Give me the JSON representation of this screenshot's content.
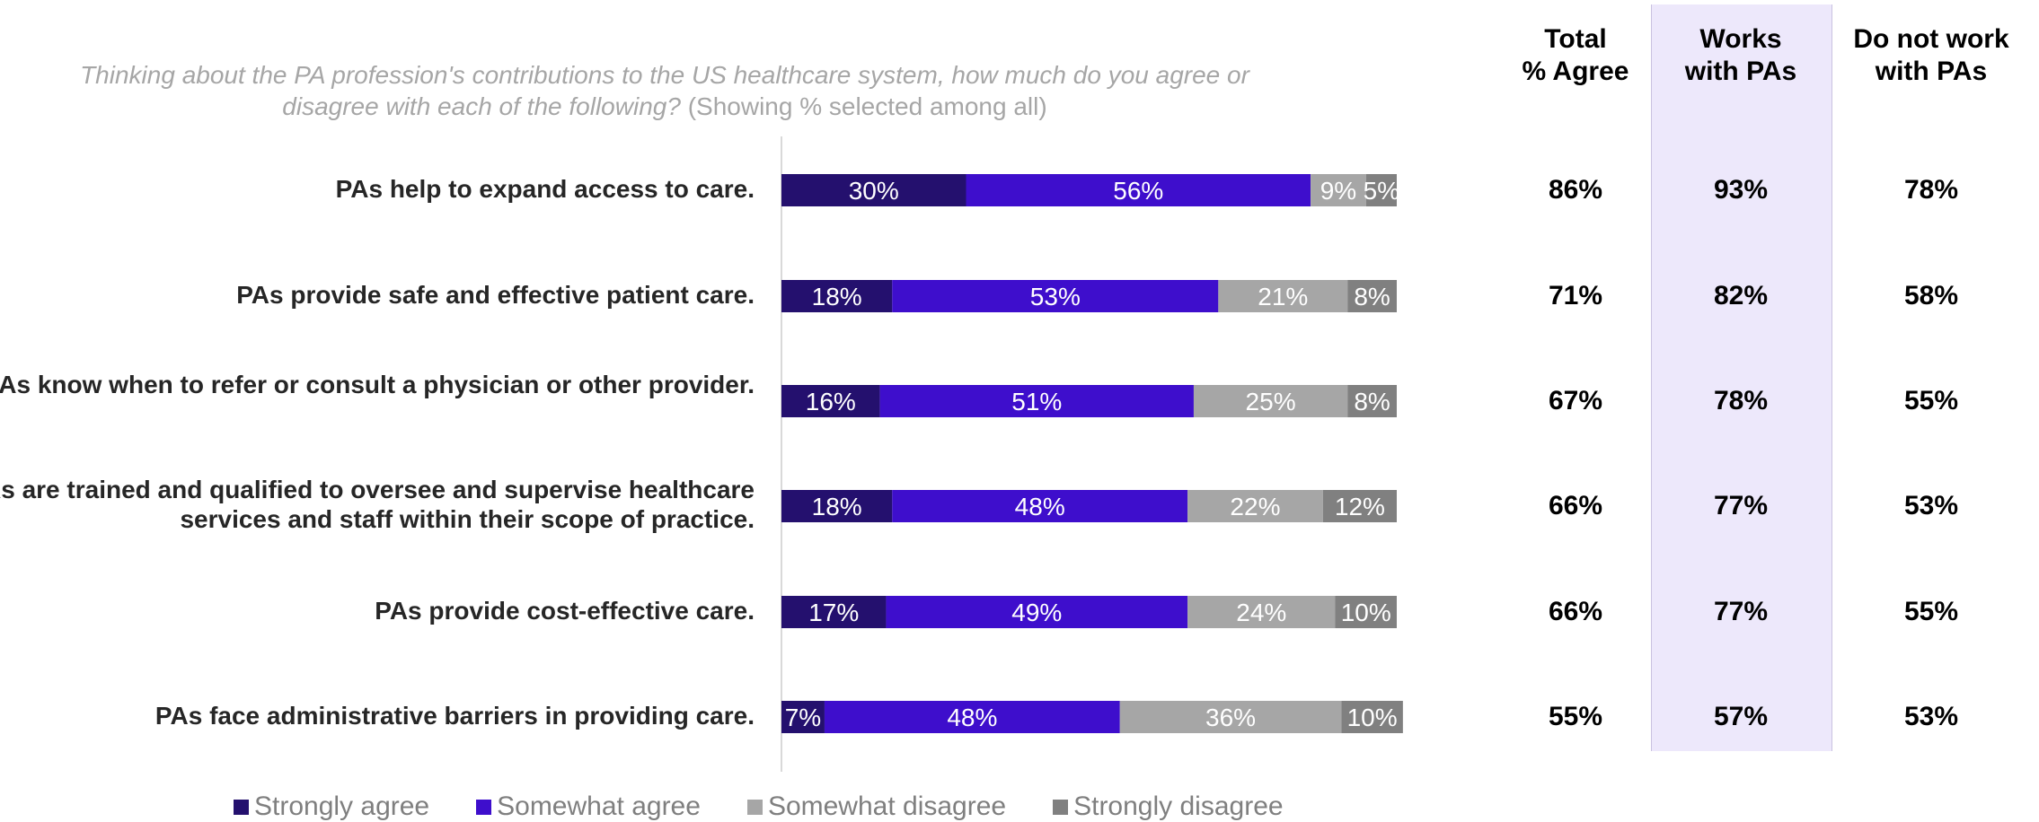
{
  "question": {
    "main": "Thinking about the PA profession's contributions to the US healthcare system, how much do you agree or disagree with each of the following?",
    "note": "(Showing % selected among all)"
  },
  "colors": {
    "strongly_agree": "#24106e",
    "somewhat_agree": "#3e0ecc",
    "somewhat_disagree": "#a6a6a6",
    "strongly_disagree": "#808080",
    "highlight_column": "#ede8fb"
  },
  "chart_data": {
    "type": "bar",
    "orientation": "horizontal",
    "stacked": true,
    "categories": [
      "PAs help to expand access to care.",
      "PAs provide safe and effective patient care.",
      "PAs know when to refer or consult a physician or other provider.",
      "PAs are trained and qualified to oversee and supervise healthcare services and staff within their scope of practice.",
      "PAs provide cost-effective care.",
      "PAs face administrative barriers in providing care."
    ],
    "series": [
      {
        "name": "Strongly agree",
        "values": [
          30,
          18,
          16,
          18,
          17,
          7
        ]
      },
      {
        "name": "Somewhat agree",
        "values": [
          56,
          53,
          51,
          48,
          49,
          48
        ]
      },
      {
        "name": "Somewhat disagree",
        "values": [
          9,
          21,
          25,
          22,
          24,
          36
        ]
      },
      {
        "name": "Strongly disagree",
        "values": [
          5,
          8,
          8,
          12,
          10,
          10
        ]
      }
    ],
    "value_suffix": "%",
    "xlim": [
      0,
      100
    ],
    "grid": false,
    "legend_position": "bottom"
  },
  "table": {
    "headers": [
      "Total\n% Agree",
      "Works\nwith PAs",
      "Do not work\nwith PAs"
    ],
    "rows": [
      [
        "86%",
        "93%",
        "78%"
      ],
      [
        "71%",
        "82%",
        "58%"
      ],
      [
        "67%",
        "78%",
        "55%"
      ],
      [
        "66%",
        "77%",
        "53%"
      ],
      [
        "66%",
        "77%",
        "55%"
      ],
      [
        "55%",
        "57%",
        "53%"
      ]
    ]
  }
}
